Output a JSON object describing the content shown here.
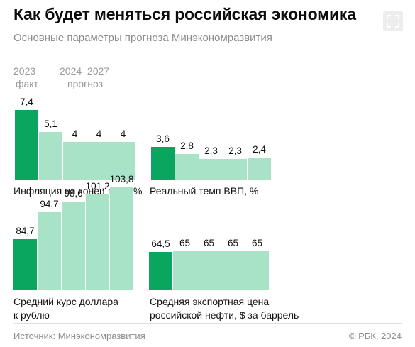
{
  "header": {
    "title": "Как будет меняться российская экономика",
    "subtitle": "Основные параметры прогноза Минэкономразвития"
  },
  "legend": {
    "year_actual": "2023",
    "label_actual": "факт",
    "years_forecast": "2024–2027",
    "label_forecast": "прогноз"
  },
  "colors": {
    "actual": "#0aa660",
    "forecast": "#a8e3c8"
  },
  "chart_data": [
    {
      "type": "bar",
      "title": "Инфляция на конец года, %",
      "categories": [
        "2023",
        "2024",
        "2025",
        "2026",
        "2027"
      ],
      "values": [
        7.4,
        5.1,
        4,
        4,
        4
      ],
      "value_labels": [
        "7,4",
        "5,1",
        "4",
        "4",
        "4"
      ]
    },
    {
      "type": "bar",
      "title": "Реальный темп ВВП, %",
      "categories": [
        "2023",
        "2024",
        "2025",
        "2026",
        "2027"
      ],
      "values": [
        3.6,
        2.8,
        2.3,
        2.3,
        2.4
      ],
      "value_labels": [
        "3,6",
        "2,8",
        "2,3",
        "2,3",
        "2,4"
      ]
    },
    {
      "type": "bar",
      "title_lines": [
        "Средний курс доллара",
        "к рублю"
      ],
      "categories": [
        "2023",
        "2024",
        "2025",
        "2026",
        "2027"
      ],
      "values": [
        84.7,
        94.7,
        98.6,
        101.2,
        103.8
      ],
      "value_labels": [
        "84,7",
        "94,7",
        "98,6",
        "101,2",
        "103,8"
      ]
    },
    {
      "type": "bar",
      "title_lines": [
        "Средняя экспортная цена",
        "российской нефти, $ за баррель"
      ],
      "categories": [
        "2023",
        "2024",
        "2025",
        "2026",
        "2027"
      ],
      "values": [
        64.5,
        65,
        65,
        65,
        65
      ],
      "value_labels": [
        "64,5",
        "65",
        "65",
        "65",
        "65"
      ]
    }
  ],
  "footer": {
    "source": "Источник: Минэкономразвития",
    "copyright": "© РБК, 2024"
  }
}
